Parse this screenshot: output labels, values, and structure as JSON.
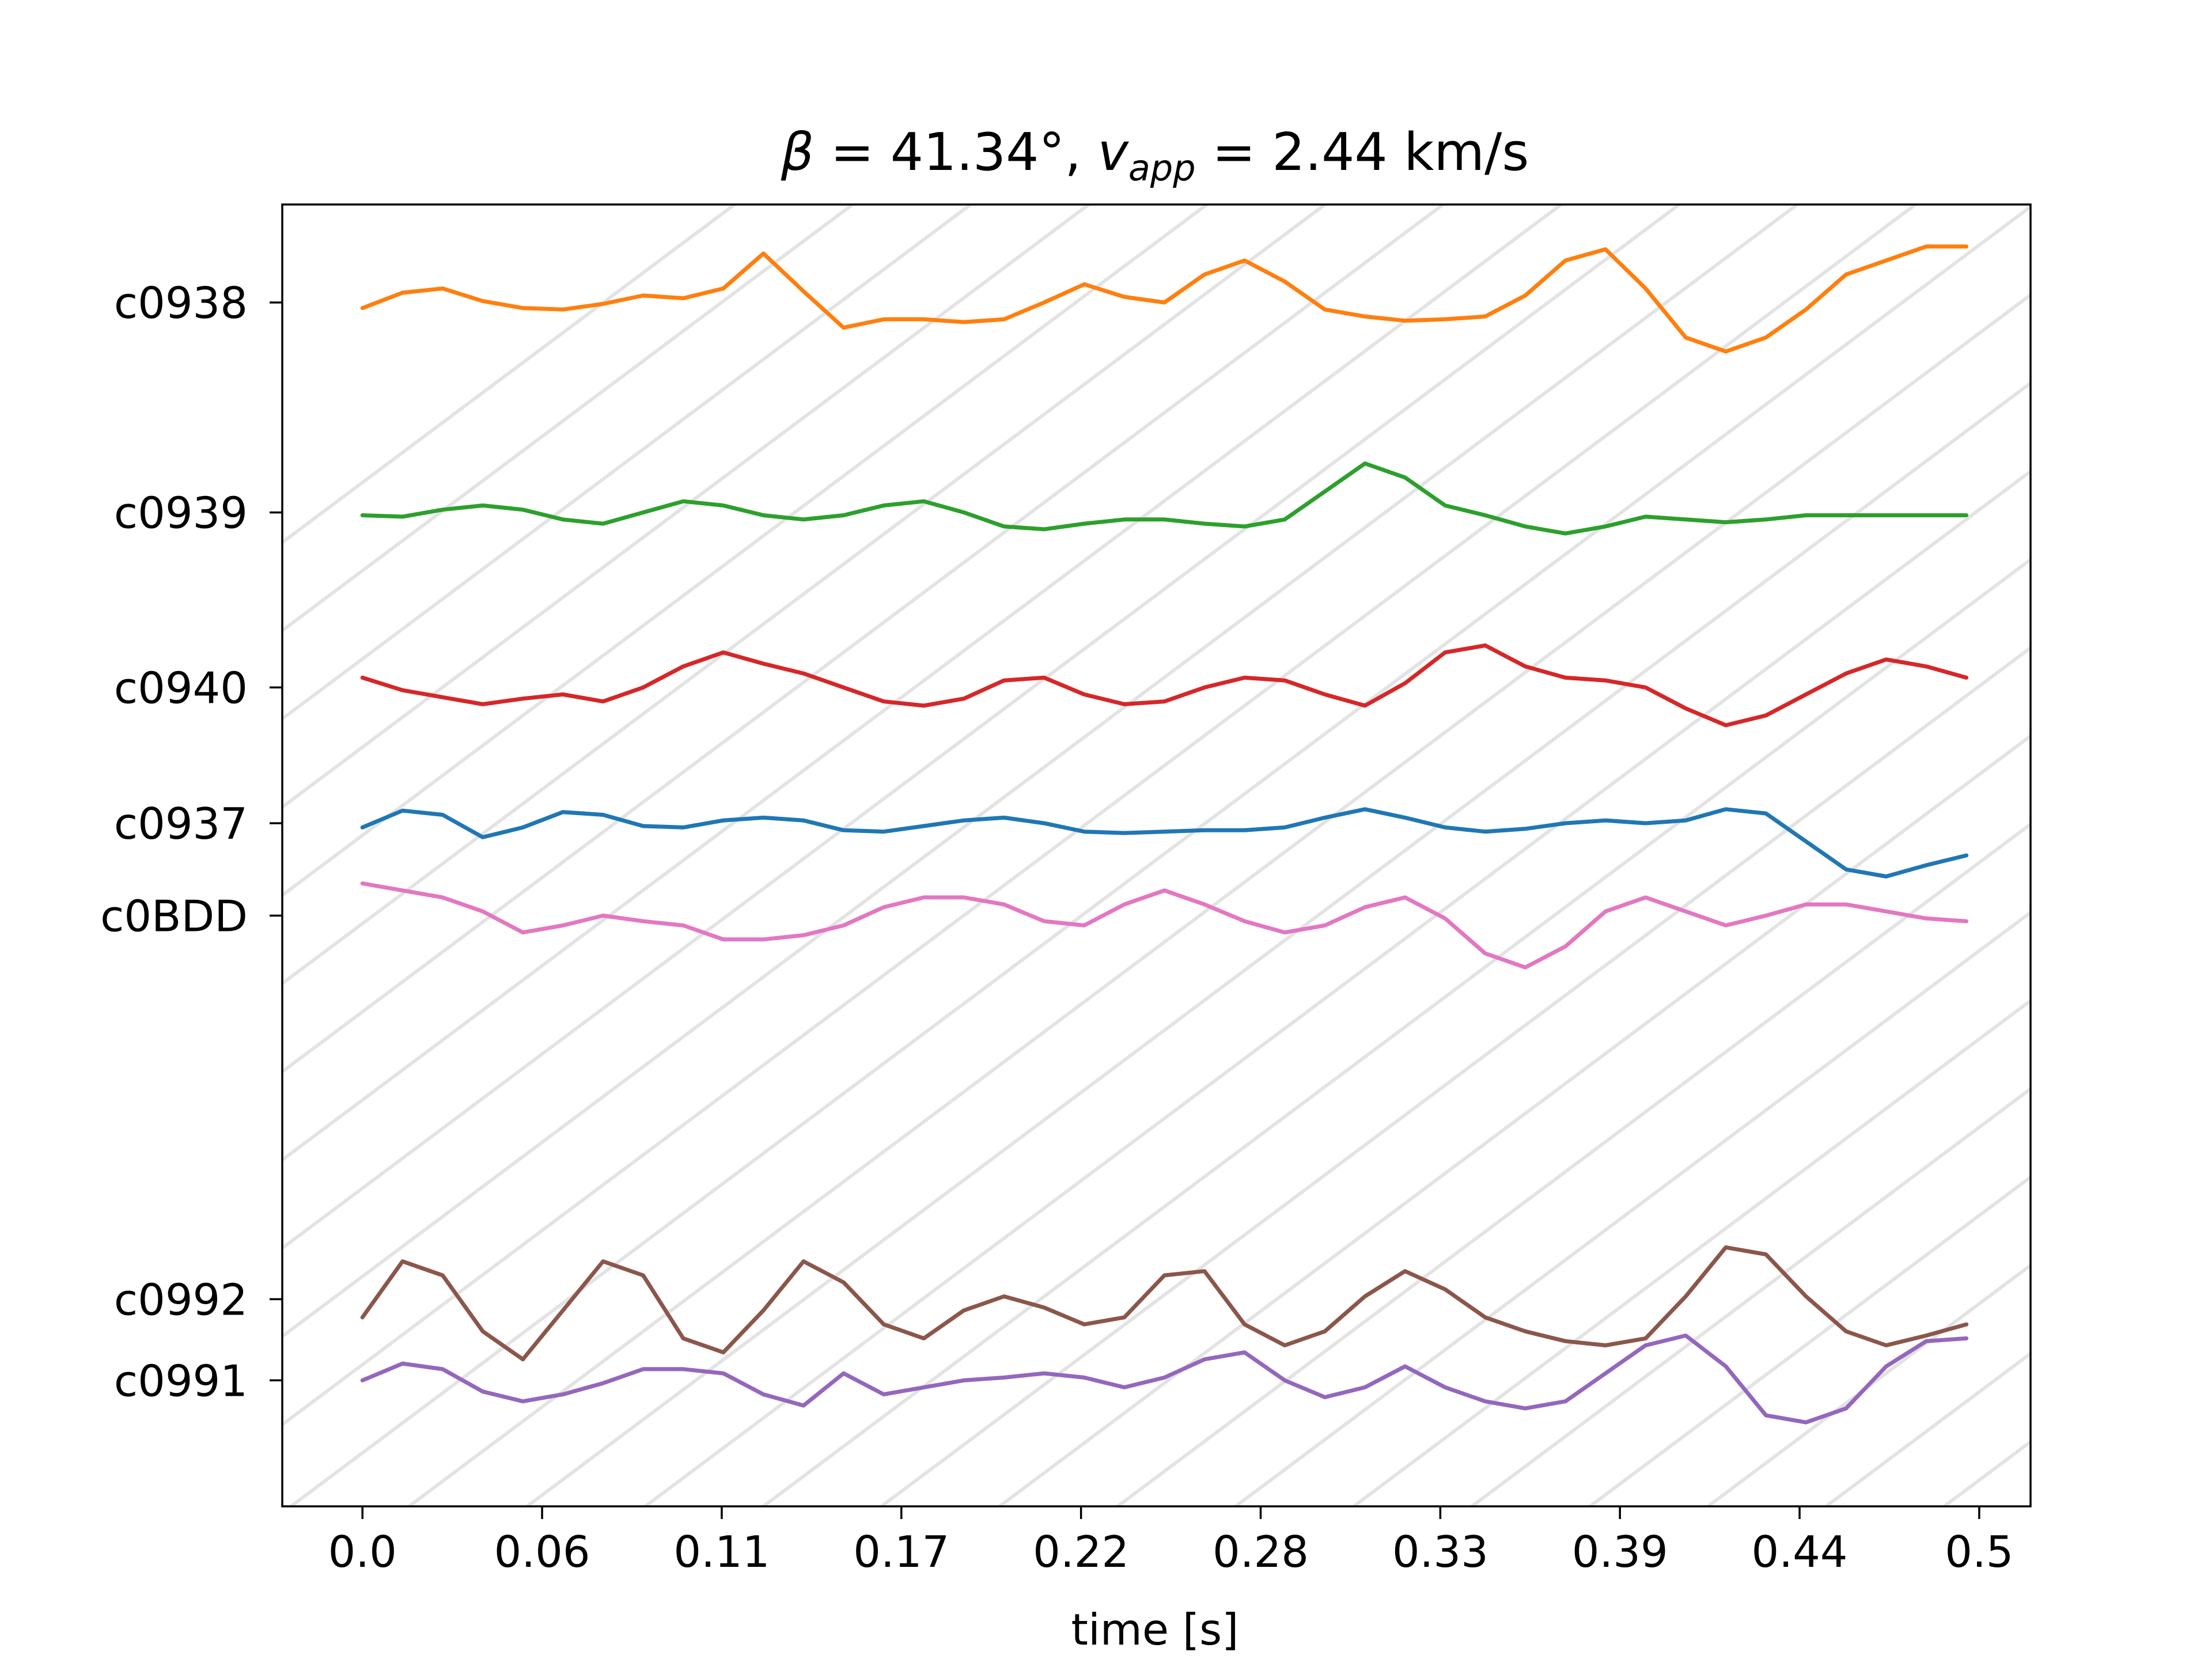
{
  "chart_data": {
    "type": "line",
    "title": {
      "beta_symbol": "β",
      "beta_value": " = 41.34°, ",
      "v_symbol": "v",
      "v_subscript": "app",
      "v_value": " = 2.44 km/s"
    },
    "xlabel": "time [s]",
    "ylabel": "",
    "xlim": [
      -0.025,
      0.52
    ],
    "ylim": [
      -0.8,
      8.5
    ],
    "grid": "diagonal moveout lines",
    "legend": "none",
    "x_ticks": [
      {
        "label": "0.0",
        "value": 0.0
      },
      {
        "label": "0.06",
        "value": 0.056
      },
      {
        "label": "0.11",
        "value": 0.112
      },
      {
        "label": "0.17",
        "value": 0.168
      },
      {
        "label": "0.22",
        "value": 0.224
      },
      {
        "label": "0.28",
        "value": 0.28
      },
      {
        "label": "0.33",
        "value": 0.336
      },
      {
        "label": "0.39",
        "value": 0.392
      },
      {
        "label": "0.44",
        "value": 0.448
      },
      {
        "label": "0.5",
        "value": 0.504
      }
    ],
    "y_ticks": [
      {
        "label": "c0938",
        "value": 7.8
      },
      {
        "label": "c0939",
        "value": 6.3
      },
      {
        "label": "c0940",
        "value": 5.05
      },
      {
        "label": "c0937",
        "value": 4.08
      },
      {
        "label": "c0BDD",
        "value": 3.42
      },
      {
        "label": "c0992",
        "value": 0.68
      },
      {
        "label": "c0991",
        "value": 0.1
      }
    ],
    "x": [
      0.0,
      0.0125,
      0.025,
      0.0375,
      0.05,
      0.0625,
      0.075,
      0.0875,
      0.1,
      0.1125,
      0.125,
      0.1375,
      0.15,
      0.1625,
      0.175,
      0.1875,
      0.2,
      0.2125,
      0.225,
      0.2375,
      0.25,
      0.2625,
      0.275,
      0.2875,
      0.3,
      0.3125,
      0.325,
      0.3375,
      0.35,
      0.3625,
      0.375,
      0.3875,
      0.4,
      0.4125,
      0.425,
      0.4375,
      0.45,
      0.4625,
      0.475,
      0.4875,
      0.5
    ],
    "series": [
      {
        "name": "c0938",
        "color": "#ff7f0e",
        "values": [
          7.76,
          7.87,
          7.9,
          7.81,
          7.76,
          7.75,
          7.79,
          7.85,
          7.83,
          7.9,
          8.15,
          7.88,
          7.62,
          7.68,
          7.68,
          7.66,
          7.68,
          7.8,
          7.93,
          7.84,
          7.8,
          8.0,
          8.1,
          7.95,
          7.75,
          7.7,
          7.67,
          7.68,
          7.7,
          7.85,
          8.1,
          8.18,
          7.9,
          7.55,
          7.45,
          7.55,
          7.75,
          8.0,
          8.1,
          8.2,
          8.2
        ]
      },
      {
        "name": "c0939",
        "color": "#2ca02c",
        "values": [
          6.28,
          6.27,
          6.32,
          6.35,
          6.32,
          6.25,
          6.22,
          6.3,
          6.38,
          6.35,
          6.28,
          6.25,
          6.28,
          6.35,
          6.38,
          6.3,
          6.2,
          6.18,
          6.22,
          6.25,
          6.25,
          6.22,
          6.2,
          6.25,
          6.45,
          6.65,
          6.55,
          6.35,
          6.28,
          6.2,
          6.15,
          6.2,
          6.27,
          6.25,
          6.23,
          6.25,
          6.28,
          6.28,
          6.28,
          6.28,
          6.28
        ]
      },
      {
        "name": "c0940",
        "color": "#d62728",
        "values": [
          5.12,
          5.03,
          4.98,
          4.93,
          4.97,
          5.0,
          4.95,
          5.05,
          5.2,
          5.3,
          5.22,
          5.15,
          5.05,
          4.95,
          4.92,
          4.97,
          5.1,
          5.12,
          5.0,
          4.93,
          4.95,
          5.05,
          5.12,
          5.1,
          5.0,
          4.92,
          5.08,
          5.3,
          5.35,
          5.2,
          5.12,
          5.1,
          5.05,
          4.9,
          4.78,
          4.85,
          5.0,
          5.15,
          5.25,
          5.2,
          5.12
        ]
      },
      {
        "name": "c0937",
        "color": "#1f77b4",
        "values": [
          4.05,
          4.17,
          4.14,
          3.98,
          4.05,
          4.16,
          4.14,
          4.06,
          4.05,
          4.1,
          4.12,
          4.1,
          4.03,
          4.02,
          4.06,
          4.1,
          4.12,
          4.08,
          4.02,
          4.01,
          4.02,
          4.03,
          4.03,
          4.05,
          4.12,
          4.18,
          4.12,
          4.05,
          4.02,
          4.04,
          4.08,
          4.1,
          4.08,
          4.1,
          4.18,
          4.15,
          3.95,
          3.75,
          3.7,
          3.78,
          3.85
        ]
      },
      {
        "name": "c0BDD",
        "color": "#e377c2",
        "values": [
          3.65,
          3.6,
          3.55,
          3.45,
          3.3,
          3.35,
          3.42,
          3.38,
          3.35,
          3.25,
          3.25,
          3.28,
          3.35,
          3.48,
          3.55,
          3.55,
          3.5,
          3.38,
          3.35,
          3.5,
          3.6,
          3.5,
          3.38,
          3.3,
          3.35,
          3.48,
          3.55,
          3.4,
          3.15,
          3.05,
          3.2,
          3.45,
          3.55,
          3.45,
          3.35,
          3.42,
          3.5,
          3.5,
          3.45,
          3.4,
          3.38
        ]
      },
      {
        "name": "c0992",
        "color": "#8c564b",
        "values": [
          0.55,
          0.95,
          0.85,
          0.45,
          0.25,
          0.6,
          0.95,
          0.85,
          0.4,
          0.3,
          0.6,
          0.95,
          0.8,
          0.5,
          0.4,
          0.6,
          0.7,
          0.62,
          0.5,
          0.55,
          0.85,
          0.88,
          0.5,
          0.35,
          0.45,
          0.7,
          0.88,
          0.75,
          0.55,
          0.45,
          0.38,
          0.35,
          0.4,
          0.7,
          1.05,
          1.0,
          0.7,
          0.45,
          0.35,
          0.42,
          0.5
        ]
      },
      {
        "name": "c0991",
        "color": "#9467bd",
        "values": [
          0.1,
          0.22,
          0.18,
          0.02,
          -0.05,
          0.0,
          0.08,
          0.18,
          0.18,
          0.15,
          0.0,
          -0.08,
          0.15,
          0.0,
          0.05,
          0.1,
          0.12,
          0.15,
          0.12,
          0.05,
          0.12,
          0.25,
          0.3,
          0.1,
          -0.02,
          0.05,
          0.2,
          0.05,
          -0.05,
          -0.1,
          -0.05,
          0.15,
          0.35,
          0.42,
          0.2,
          -0.15,
          -0.2,
          -0.1,
          0.2,
          0.38,
          0.4
        ]
      }
    ],
    "colors": {
      "axes": "#000000",
      "grid": "#e3e3e3",
      "background": "#ffffff"
    }
  }
}
